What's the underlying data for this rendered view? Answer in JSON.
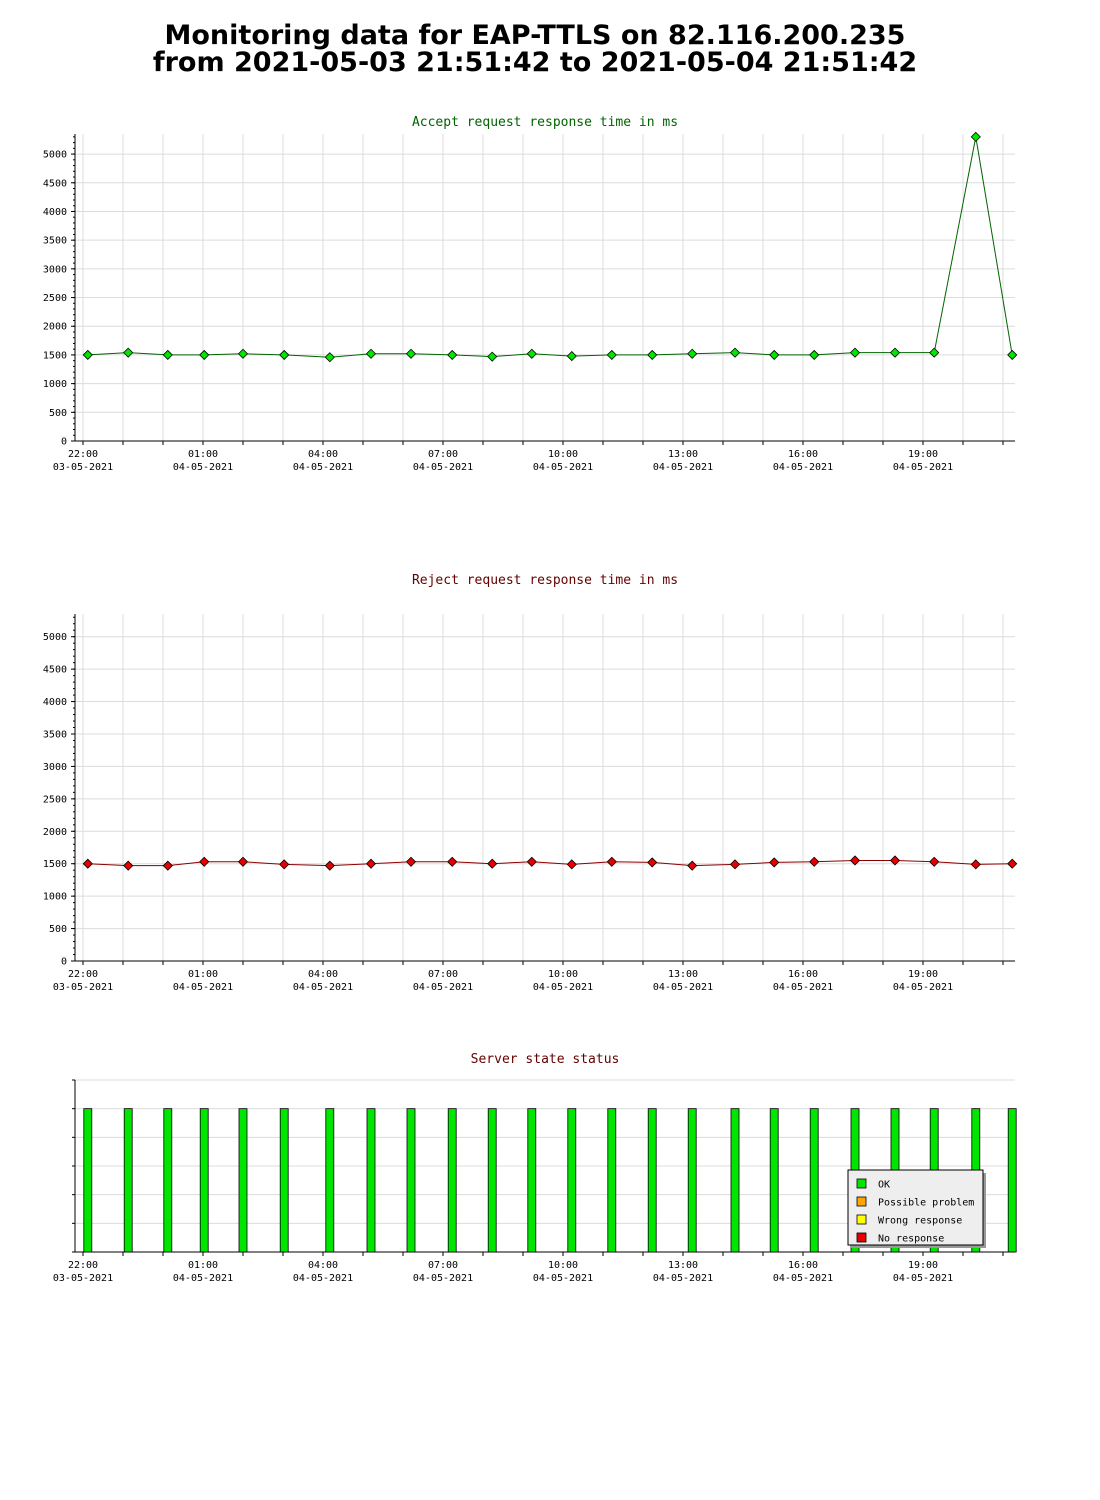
{
  "header": {
    "line1": "Monitoring data for EAP-TTLS on 82.116.200.235",
    "line2": "from 2021-05-03 21:51:42 to 2021-05-04 21:51:42"
  },
  "colors": {
    "accept_title": "#006400",
    "reject_title": "#640000",
    "status_title": "#640000",
    "accept_marker": "#00e600",
    "accept_line": "#006400",
    "reject_marker": "#e60000",
    "reject_line": "#8b0000",
    "ok": "#00e600",
    "possible_problem": "#ffa500",
    "wrong_response": "#ffff00",
    "no_response": "#e60000"
  },
  "chart_data": [
    {
      "type": "line",
      "title": "Accept request response time in ms",
      "ylim": [
        0,
        5350
      ],
      "yticks": [
        0,
        500,
        1000,
        1500,
        2000,
        2500,
        3000,
        3500,
        4000,
        4500,
        5000
      ],
      "xlim_hours": [
        21.8,
        45.3
      ],
      "xticks": [
        {
          "h": 22,
          "time": "22:00",
          "date": "03-05-2021"
        },
        {
          "h": 25,
          "time": "01:00",
          "date": "04-05-2021"
        },
        {
          "h": 28,
          "time": "04:00",
          "date": "04-05-2021"
        },
        {
          "h": 31,
          "time": "07:00",
          "date": "04-05-2021"
        },
        {
          "h": 34,
          "time": "10:00",
          "date": "04-05-2021"
        },
        {
          "h": 37,
          "time": "13:00",
          "date": "04-05-2021"
        },
        {
          "h": 40,
          "time": "16:00",
          "date": "04-05-2021"
        },
        {
          "h": 43,
          "time": "19:00",
          "date": "04-05-2021"
        }
      ],
      "grid": true,
      "x": [
        22.12,
        23.13,
        24.12,
        25.03,
        26.0,
        27.03,
        28.17,
        29.2,
        30.2,
        31.23,
        32.23,
        33.22,
        34.22,
        35.22,
        36.23,
        37.23,
        38.3,
        39.28,
        40.28,
        41.3,
        42.3,
        43.28,
        44.32,
        45.23
      ],
      "y": [
        1500,
        1540,
        1500,
        1500,
        1520,
        1500,
        1460,
        1520,
        1520,
        1500,
        1470,
        1520,
        1480,
        1500,
        1500,
        1520,
        1540,
        1500,
        1500,
        1540,
        1540,
        1540,
        5300,
        1500
      ]
    },
    {
      "type": "line",
      "title": "Reject request response time in ms",
      "ylim": [
        0,
        5350
      ],
      "yticks": [
        0,
        500,
        1000,
        1500,
        2000,
        2500,
        3000,
        3500,
        4000,
        4500,
        5000
      ],
      "xlim_hours": [
        21.8,
        45.3
      ],
      "xticks": [
        {
          "h": 22,
          "time": "22:00",
          "date": "03-05-2021"
        },
        {
          "h": 25,
          "time": "01:00",
          "date": "04-05-2021"
        },
        {
          "h": 28,
          "time": "04:00",
          "date": "04-05-2021"
        },
        {
          "h": 31,
          "time": "07:00",
          "date": "04-05-2021"
        },
        {
          "h": 34,
          "time": "10:00",
          "date": "04-05-2021"
        },
        {
          "h": 37,
          "time": "13:00",
          "date": "04-05-2021"
        },
        {
          "h": 40,
          "time": "16:00",
          "date": "04-05-2021"
        },
        {
          "h": 43,
          "time": "19:00",
          "date": "04-05-2021"
        }
      ],
      "grid": true,
      "x": [
        22.12,
        23.13,
        24.12,
        25.03,
        26.0,
        27.03,
        28.17,
        29.2,
        30.2,
        31.23,
        32.23,
        33.22,
        34.22,
        35.22,
        36.23,
        37.23,
        38.3,
        39.28,
        40.28,
        41.3,
        42.3,
        43.28,
        44.32,
        45.23
      ],
      "y": [
        1500,
        1470,
        1470,
        1530,
        1530,
        1490,
        1470,
        1500,
        1530,
        1530,
        1500,
        1530,
        1490,
        1530,
        1520,
        1470,
        1490,
        1520,
        1530,
        1550,
        1550,
        1530,
        1490,
        1500
      ]
    },
    {
      "type": "bar",
      "title": "Server state status",
      "xlim_hours": [
        21.8,
        45.3
      ],
      "xticks": [
        {
          "h": 22,
          "time": "22:00",
          "date": "03-05-2021"
        },
        {
          "h": 25,
          "time": "01:00",
          "date": "04-05-2021"
        },
        {
          "h": 28,
          "time": "04:00",
          "date": "04-05-2021"
        },
        {
          "h": 31,
          "time": "07:00",
          "date": "04-05-2021"
        },
        {
          "h": 34,
          "time": "10:00",
          "date": "04-05-2021"
        },
        {
          "h": 37,
          "time": "13:00",
          "date": "04-05-2021"
        },
        {
          "h": 40,
          "time": "16:00",
          "date": "04-05-2021"
        },
        {
          "h": 43,
          "time": "19:00",
          "date": "04-05-2021"
        }
      ],
      "x": [
        22.12,
        23.13,
        24.12,
        25.03,
        26.0,
        27.03,
        28.17,
        29.2,
        30.2,
        31.23,
        32.23,
        33.22,
        34.22,
        35.22,
        36.23,
        37.23,
        38.3,
        39.28,
        40.28,
        41.3,
        42.3,
        43.28,
        44.32,
        45.23
      ],
      "states": [
        "OK",
        "OK",
        "OK",
        "OK",
        "OK",
        "OK",
        "OK",
        "OK",
        "OK",
        "OK",
        "OK",
        "OK",
        "OK",
        "OK",
        "OK",
        "OK",
        "OK",
        "OK",
        "OK",
        "OK",
        "OK",
        "OK",
        "OK",
        "OK"
      ],
      "legend": [
        {
          "label": "OK",
          "color": "#00e600"
        },
        {
          "label": "Possible problem",
          "color": "#ffa500"
        },
        {
          "label": "Wrong response",
          "color": "#ffff00"
        },
        {
          "label": "No response",
          "color": "#e60000"
        }
      ],
      "legend_position": "bottom-right"
    }
  ]
}
